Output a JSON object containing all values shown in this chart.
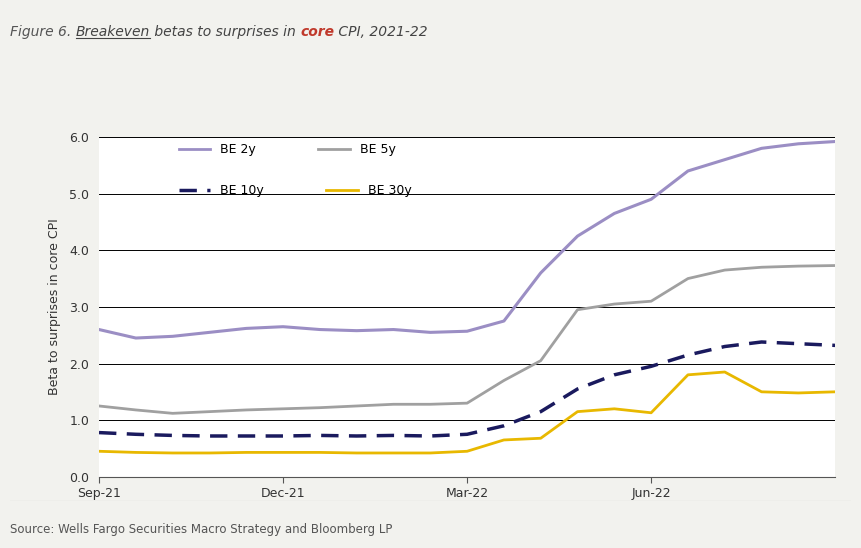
{
  "ylabel": "Beta to surprises in core CPI",
  "source": "Source: Wells Fargo Securities Macro Strategy and Bloomberg LP",
  "ylim": [
    0.0,
    6.0
  ],
  "yticks": [
    0.0,
    1.0,
    2.0,
    3.0,
    4.0,
    5.0,
    6.0
  ],
  "xtick_labels": [
    "Sep-21",
    "Dec-21",
    "Mar-22",
    "Jun-22"
  ],
  "xtick_positions": [
    0,
    3,
    6,
    9
  ],
  "bg_color": "#f2f2ee",
  "plot_bg_color": "#ffffff",
  "be2y_color": "#9b8ec4",
  "be5y_color": "#a0a0a0",
  "be10y_color": "#1a1a5e",
  "be30y_color": "#e8b800",
  "x": [
    0,
    1,
    2,
    3,
    4,
    5,
    6,
    7,
    8,
    9,
    10,
    11,
    12,
    13,
    14,
    15,
    16,
    17,
    18,
    19,
    20
  ],
  "be2y": [
    2.6,
    2.45,
    2.48,
    2.55,
    2.62,
    2.65,
    2.6,
    2.58,
    2.6,
    2.55,
    2.57,
    2.75,
    3.6,
    4.25,
    4.65,
    4.9,
    5.4,
    5.6,
    5.8,
    5.88,
    5.92
  ],
  "be5y": [
    1.25,
    1.18,
    1.12,
    1.15,
    1.18,
    1.2,
    1.22,
    1.25,
    1.28,
    1.28,
    1.3,
    1.7,
    2.05,
    2.95,
    3.05,
    3.1,
    3.5,
    3.65,
    3.7,
    3.72,
    3.73
  ],
  "be10y": [
    0.78,
    0.75,
    0.73,
    0.72,
    0.72,
    0.72,
    0.73,
    0.72,
    0.73,
    0.72,
    0.75,
    0.9,
    1.15,
    1.55,
    1.8,
    1.95,
    2.15,
    2.3,
    2.38,
    2.35,
    2.32
  ],
  "be30y": [
    0.45,
    0.43,
    0.42,
    0.42,
    0.43,
    0.43,
    0.43,
    0.42,
    0.42,
    0.42,
    0.45,
    0.65,
    0.68,
    1.15,
    1.2,
    1.13,
    1.8,
    1.85,
    1.5,
    1.48,
    1.5
  ],
  "title_part1": "Figure 6. ",
  "title_underline": "Breakeven",
  "title_part2": " betas to surprises in ",
  "title_core": "core",
  "title_part3": " CPI, 2021-22"
}
